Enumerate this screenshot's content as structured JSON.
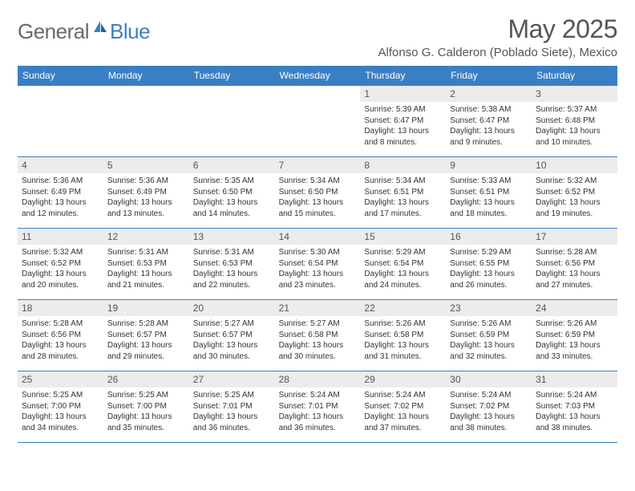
{
  "logo": {
    "general": "General",
    "blue": "Blue"
  },
  "title": "May 2025",
  "location": "Alfonso G. Calderon (Poblado Siete), Mexico",
  "colors": {
    "header_bg": "#3a7fc4",
    "header_text": "#ffffff",
    "daynum_bg": "#ececec",
    "text": "#333333",
    "logo_gray": "#6a6a6a",
    "logo_blue": "#3a7fc4",
    "border": "#3a7fc4",
    "background": "#ffffff"
  },
  "weekdays": [
    "Sunday",
    "Monday",
    "Tuesday",
    "Wednesday",
    "Thursday",
    "Friday",
    "Saturday"
  ],
  "weeks": [
    [
      {
        "empty": true
      },
      {
        "empty": true
      },
      {
        "empty": true
      },
      {
        "empty": true
      },
      {
        "n": "1",
        "sr": "5:39 AM",
        "ss": "6:47 PM",
        "dl": "13 hours and 8 minutes."
      },
      {
        "n": "2",
        "sr": "5:38 AM",
        "ss": "6:47 PM",
        "dl": "13 hours and 9 minutes."
      },
      {
        "n": "3",
        "sr": "5:37 AM",
        "ss": "6:48 PM",
        "dl": "13 hours and 10 minutes."
      }
    ],
    [
      {
        "n": "4",
        "sr": "5:36 AM",
        "ss": "6:49 PM",
        "dl": "13 hours and 12 minutes."
      },
      {
        "n": "5",
        "sr": "5:36 AM",
        "ss": "6:49 PM",
        "dl": "13 hours and 13 minutes."
      },
      {
        "n": "6",
        "sr": "5:35 AM",
        "ss": "6:50 PM",
        "dl": "13 hours and 14 minutes."
      },
      {
        "n": "7",
        "sr": "5:34 AM",
        "ss": "6:50 PM",
        "dl": "13 hours and 15 minutes."
      },
      {
        "n": "8",
        "sr": "5:34 AM",
        "ss": "6:51 PM",
        "dl": "13 hours and 17 minutes."
      },
      {
        "n": "9",
        "sr": "5:33 AM",
        "ss": "6:51 PM",
        "dl": "13 hours and 18 minutes."
      },
      {
        "n": "10",
        "sr": "5:32 AM",
        "ss": "6:52 PM",
        "dl": "13 hours and 19 minutes."
      }
    ],
    [
      {
        "n": "11",
        "sr": "5:32 AM",
        "ss": "6:52 PM",
        "dl": "13 hours and 20 minutes."
      },
      {
        "n": "12",
        "sr": "5:31 AM",
        "ss": "6:53 PM",
        "dl": "13 hours and 21 minutes."
      },
      {
        "n": "13",
        "sr": "5:31 AM",
        "ss": "6:53 PM",
        "dl": "13 hours and 22 minutes."
      },
      {
        "n": "14",
        "sr": "5:30 AM",
        "ss": "6:54 PM",
        "dl": "13 hours and 23 minutes."
      },
      {
        "n": "15",
        "sr": "5:29 AM",
        "ss": "6:54 PM",
        "dl": "13 hours and 24 minutes."
      },
      {
        "n": "16",
        "sr": "5:29 AM",
        "ss": "6:55 PM",
        "dl": "13 hours and 26 minutes."
      },
      {
        "n": "17",
        "sr": "5:28 AM",
        "ss": "6:56 PM",
        "dl": "13 hours and 27 minutes."
      }
    ],
    [
      {
        "n": "18",
        "sr": "5:28 AM",
        "ss": "6:56 PM",
        "dl": "13 hours and 28 minutes."
      },
      {
        "n": "19",
        "sr": "5:28 AM",
        "ss": "6:57 PM",
        "dl": "13 hours and 29 minutes."
      },
      {
        "n": "20",
        "sr": "5:27 AM",
        "ss": "6:57 PM",
        "dl": "13 hours and 30 minutes."
      },
      {
        "n": "21",
        "sr": "5:27 AM",
        "ss": "6:58 PM",
        "dl": "13 hours and 30 minutes."
      },
      {
        "n": "22",
        "sr": "5:26 AM",
        "ss": "6:58 PM",
        "dl": "13 hours and 31 minutes."
      },
      {
        "n": "23",
        "sr": "5:26 AM",
        "ss": "6:59 PM",
        "dl": "13 hours and 32 minutes."
      },
      {
        "n": "24",
        "sr": "5:26 AM",
        "ss": "6:59 PM",
        "dl": "13 hours and 33 minutes."
      }
    ],
    [
      {
        "n": "25",
        "sr": "5:25 AM",
        "ss": "7:00 PM",
        "dl": "13 hours and 34 minutes."
      },
      {
        "n": "26",
        "sr": "5:25 AM",
        "ss": "7:00 PM",
        "dl": "13 hours and 35 minutes."
      },
      {
        "n": "27",
        "sr": "5:25 AM",
        "ss": "7:01 PM",
        "dl": "13 hours and 36 minutes."
      },
      {
        "n": "28",
        "sr": "5:24 AM",
        "ss": "7:01 PM",
        "dl": "13 hours and 36 minutes."
      },
      {
        "n": "29",
        "sr": "5:24 AM",
        "ss": "7:02 PM",
        "dl": "13 hours and 37 minutes."
      },
      {
        "n": "30",
        "sr": "5:24 AM",
        "ss": "7:02 PM",
        "dl": "13 hours and 38 minutes."
      },
      {
        "n": "31",
        "sr": "5:24 AM",
        "ss": "7:03 PM",
        "dl": "13 hours and 38 minutes."
      }
    ]
  ],
  "labels": {
    "sunrise": "Sunrise: ",
    "sunset": "Sunset: ",
    "daylight": "Daylight: "
  }
}
